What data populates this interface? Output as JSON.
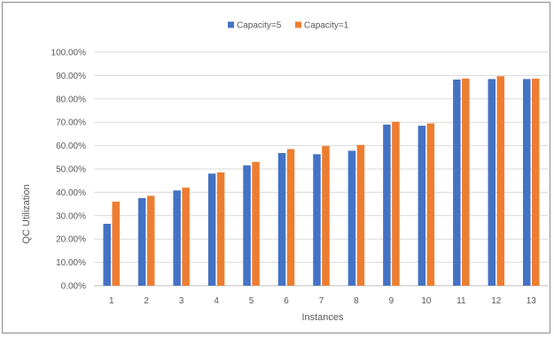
{
  "chart_data": {
    "type": "bar",
    "title": "",
    "xlabel": "Instances",
    "ylabel": "QC Utilization",
    "categories": [
      "1",
      "2",
      "3",
      "4",
      "5",
      "6",
      "7",
      "8",
      "9",
      "10",
      "11",
      "12",
      "13"
    ],
    "series": [
      {
        "name": "Capacity=5",
        "color": "#4472C4",
        "values": [
          0.265,
          0.375,
          0.408,
          0.48,
          0.515,
          0.568,
          0.563,
          0.578,
          0.69,
          0.685,
          0.883,
          0.885,
          0.885
        ]
      },
      {
        "name": "Capacity=1",
        "color": "#ED7D31",
        "values": [
          0.36,
          0.385,
          0.42,
          0.485,
          0.53,
          0.585,
          0.598,
          0.603,
          0.702,
          0.695,
          0.887,
          0.897,
          0.887
        ]
      }
    ],
    "ylim": [
      0,
      1
    ],
    "yticks": [
      "0.00%",
      "10.00%",
      "20.00%",
      "30.00%",
      "40.00%",
      "50.00%",
      "60.00%",
      "70.00%",
      "80.00%",
      "90.00%",
      "100.00%"
    ],
    "grid": true,
    "legend": "top-center",
    "gridline_color": "#d9d9d9",
    "axis_color": "#bfbfbf"
  }
}
